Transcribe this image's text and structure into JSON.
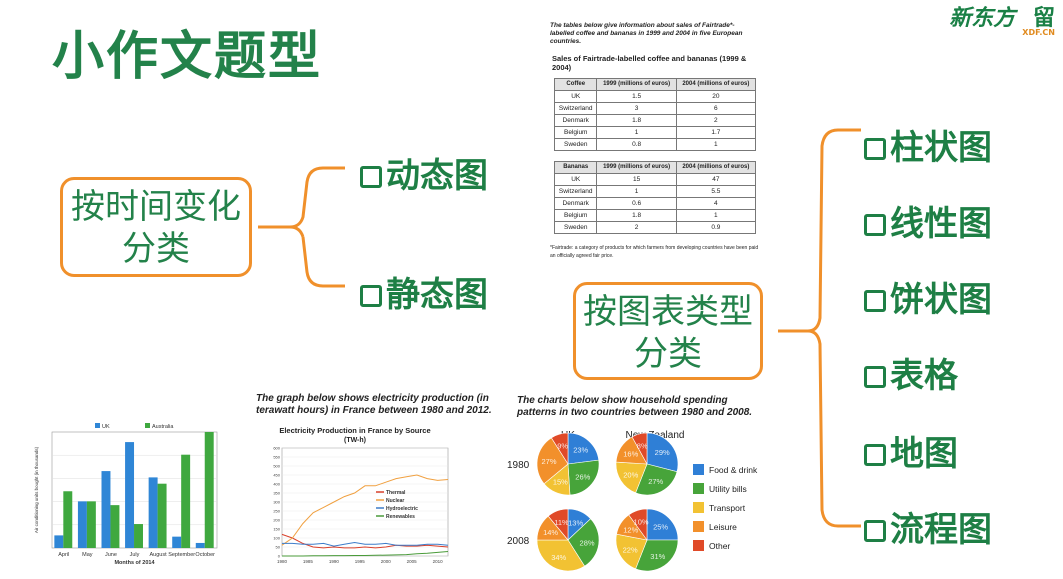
{
  "title": "小作文题型",
  "logo": {
    "text": "新东方",
    "sub": "XDF.CN",
    "extra": "留"
  },
  "left_group": {
    "label_line1": "按时间变化",
    "label_line2": "分类",
    "options": [
      "动态图",
      "静态图"
    ]
  },
  "right_group": {
    "label_line1": "按图表类型",
    "label_line2": "分类",
    "options": [
      "柱状图",
      "线性图",
      "饼状图",
      "表格",
      "地图",
      "流程图"
    ]
  },
  "table_example": {
    "intro": "The tables below give information about sales of Fairtrade*-labelled coffee and bananas in 1999 and 2004 in five European countries.",
    "caption": "Sales of Fairtrade-labelled coffee and bananas (1999 & 2004)",
    "col_1999": "1999 (millions of euros)",
    "col_2004": "2004 (millions of euros)",
    "coffee": {
      "header": "Coffee",
      "rows": [
        [
          "UK",
          "1.5",
          "20"
        ],
        [
          "Switzerland",
          "3",
          "6"
        ],
        [
          "Denmark",
          "1.8",
          "2"
        ],
        [
          "Belgium",
          "1",
          "1.7"
        ],
        [
          "Sweden",
          "0.8",
          "1"
        ]
      ]
    },
    "bananas": {
      "header": "Bananas",
      "rows": [
        [
          "UK",
          "15",
          "47"
        ],
        [
          "Switzerland",
          "1",
          "5.5"
        ],
        [
          "Denmark",
          "0.6",
          "4"
        ],
        [
          "Belgium",
          "1.8",
          "1"
        ],
        [
          "Sweden",
          "2",
          "0.9"
        ]
      ]
    },
    "footnote": "*Fairtrade: a category of products for which farmers from developing countries have been paid an officially agreed fair price."
  },
  "chart_data": [
    {
      "type": "bar",
      "categories": [
        "April",
        "May",
        "June",
        "July",
        "August",
        "September",
        "October"
      ],
      "series": [
        {
          "name": "UK",
          "values": [
            1.0,
            3.7,
            6.1,
            8.4,
            5.6,
            0.9,
            0.4
          ]
        },
        {
          "name": "Australia",
          "values": [
            4.5,
            3.7,
            3.4,
            1.9,
            5.1,
            7.4,
            9.2
          ]
        }
      ],
      "xlabel": "Months of 2014",
      "ylabel": "Air conditioning units bought (in thousands)",
      "ylim": [
        0,
        9.2
      ],
      "colors": [
        "#2f86d6",
        "#3fa83f"
      ],
      "legend": "top"
    },
    {
      "type": "line",
      "caption": "The graph below shows electricity production (in terawatt hours) in France between 1980 and 2012.",
      "title": "Electricity Production in France by Source",
      "subtitle": "(TW-h)",
      "x": [
        1980,
        1982,
        1984,
        1986,
        1988,
        1990,
        1992,
        1994,
        1996,
        1998,
        2000,
        2002,
        2004,
        2006,
        2008,
        2010,
        2012
      ],
      "xticks": [
        "1980",
        "1985",
        "1990",
        "1995",
        "2000",
        "2005",
        "2010"
      ],
      "yticks": [
        "0",
        "50",
        "100",
        "150",
        "200",
        "250",
        "300",
        "350",
        "400",
        "450",
        "500",
        "550",
        "600"
      ],
      "ylim": [
        0,
        600
      ],
      "series": [
        {
          "name": "Thermal",
          "color": "#d9402b",
          "values": [
            120,
            100,
            70,
            50,
            45,
            50,
            45,
            45,
            50,
            45,
            50,
            60,
            55,
            55,
            60,
            55,
            50
          ]
        },
        {
          "name": "Nuclear",
          "color": "#f0a040",
          "values": [
            60,
            100,
            180,
            240,
            270,
            300,
            330,
            350,
            390,
            390,
            410,
            430,
            440,
            450,
            430,
            420,
            425
          ]
        },
        {
          "name": "Hydroelectric",
          "color": "#3d7cc9",
          "values": [
            70,
            70,
            65,
            65,
            70,
            55,
            65,
            75,
            65,
            65,
            70,
            60,
            60,
            60,
            65,
            65,
            60
          ]
        },
        {
          "name": "Renewables",
          "color": "#4a9b3a",
          "values": [
            0,
            0,
            0,
            1,
            1,
            2,
            2,
            3,
            3,
            4,
            5,
            6,
            8,
            12,
            15,
            20,
            25
          ]
        }
      ],
      "legend": "center-right"
    },
    {
      "type": "pie",
      "caption": "The charts below show household spending patterns in two countries between 1980 and 2008.",
      "countries": [
        "UK",
        "New Zealand"
      ],
      "years": [
        "1980",
        "2008"
      ],
      "categories": [
        "Food & drink",
        "Utility bills",
        "Transport",
        "Leisure",
        "Other"
      ],
      "colors": [
        "#2f7fd6",
        "#47a43a",
        "#f2c233",
        "#f2902b",
        "#e04a28"
      ],
      "pies": [
        {
          "country": "UK",
          "year": "1980",
          "values": [
            23,
            26,
            15,
            27,
            9
          ],
          "labels": [
            "23%",
            "26%",
            "15%",
            "27%",
            "9%"
          ]
        },
        {
          "country": "New Zealand",
          "year": "1980",
          "values": [
            29,
            27,
            20,
            16,
            8
          ],
          "labels": [
            "29%",
            "27%",
            "20%",
            "16%",
            "8%"
          ]
        },
        {
          "country": "UK",
          "year": "2008",
          "values": [
            13,
            28,
            34,
            14,
            11
          ],
          "labels": [
            "13%",
            "28%",
            "34%",
            "14%",
            "11%"
          ]
        },
        {
          "country": "New Zealand",
          "year": "2008",
          "values": [
            25,
            31,
            22,
            12,
            10
          ],
          "labels": [
            "25%",
            "31%",
            "22%",
            "12%",
            "10%"
          ]
        }
      ],
      "legend": "right"
    }
  ]
}
